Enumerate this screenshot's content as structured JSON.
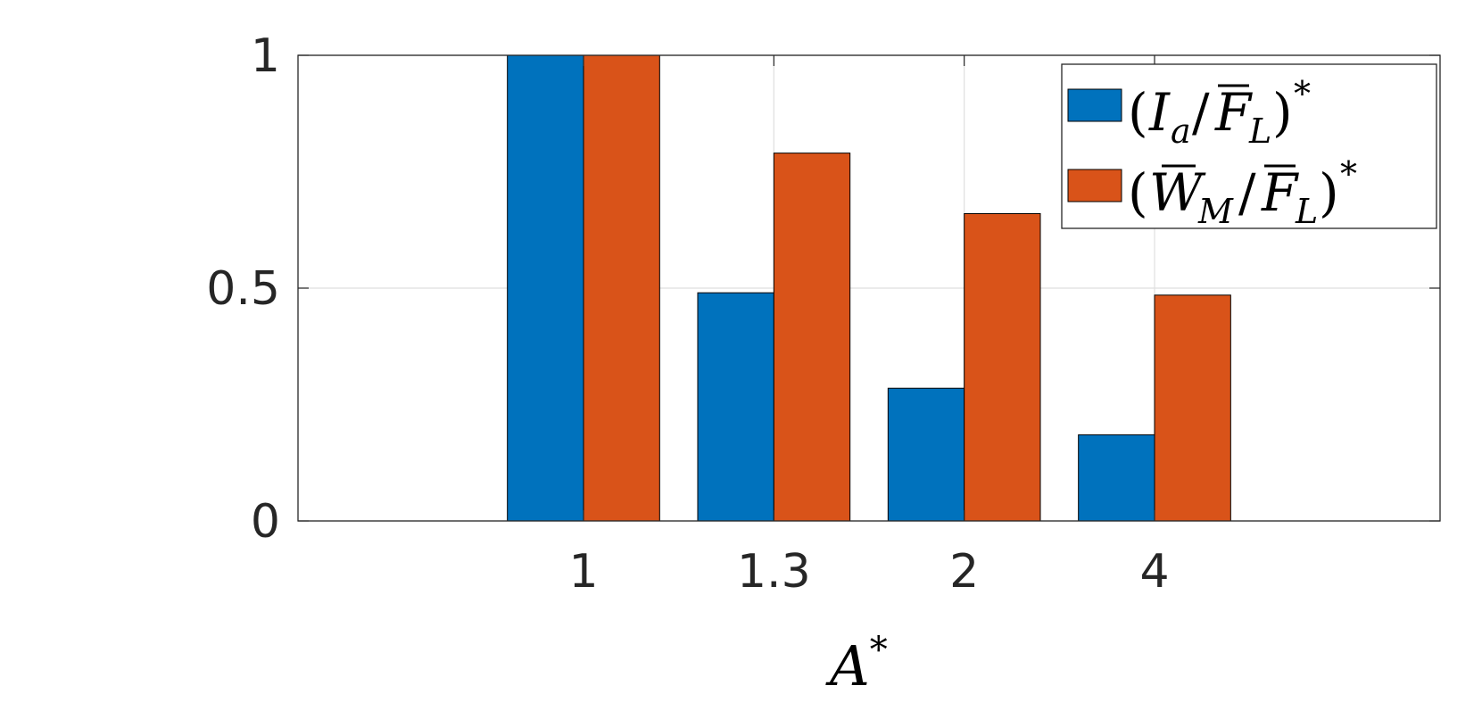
{
  "chart_data": {
    "type": "bar",
    "categories": [
      "1",
      "1.3",
      "2",
      "4"
    ],
    "series": [
      {
        "name": "(I_a / F̄_L)*",
        "values": [
          1.0,
          0.49,
          0.285,
          0.185
        ],
        "color": "#0072bd"
      },
      {
        "name": "(W̄_M / F̄_L)*",
        "values": [
          1.0,
          0.79,
          0.66,
          0.485
        ],
        "color": "#d95319"
      }
    ],
    "xlabel": "A*",
    "ylabel": "",
    "title": "",
    "ylim": [
      0,
      1
    ],
    "yticks": [
      "0",
      "0.5",
      "1"
    ],
    "grid": true,
    "legend": "top-right"
  }
}
